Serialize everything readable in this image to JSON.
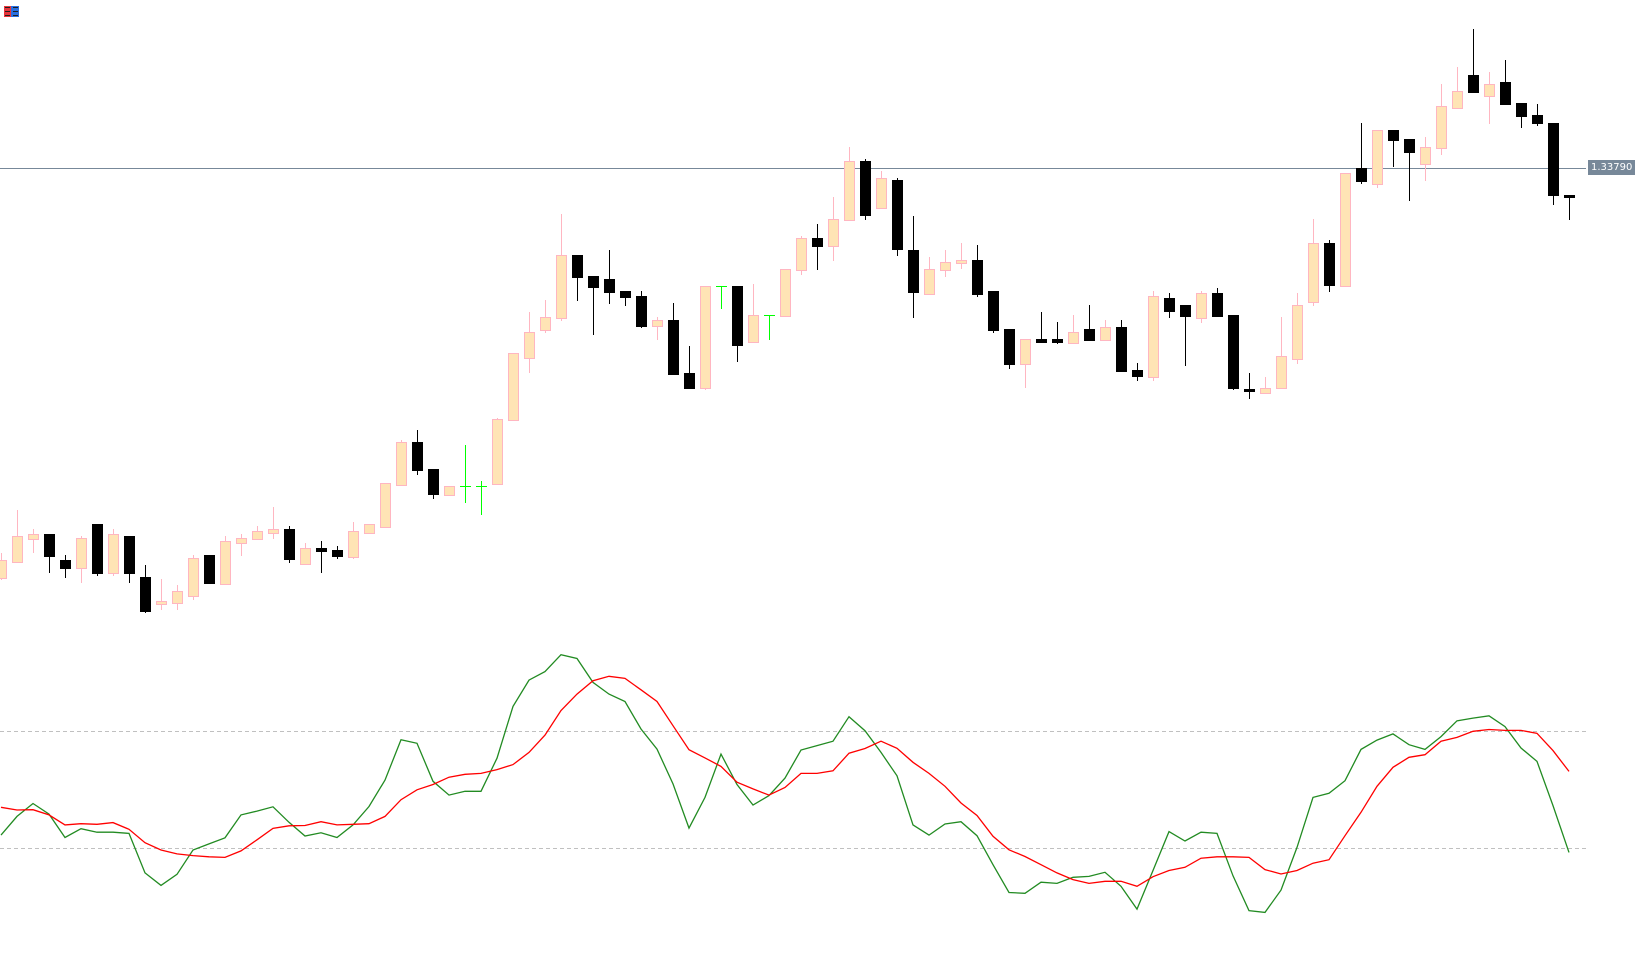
{
  "window": {
    "icon": "terminal-app-icon"
  },
  "colors": {
    "bull_body": "#ffe4b5",
    "bull_border": "#ffb6c1",
    "bear_body": "#000000",
    "doji": "#00ff00",
    "hline": "#778899",
    "level_line": "#c0c0c0",
    "osc_main": "#228b22",
    "osc_signal": "#ff0000"
  },
  "chart_data": [
    {
      "type": "candlestick",
      "horizontal_line": {
        "value": 1.3379,
        "label": "1.33790"
      },
      "ohlc_order": [
        "open",
        "high",
        "low",
        "close"
      ],
      "candles": [
        [
          1.3297,
          1.3302,
          1.32966,
          1.33006
        ],
        [
          1.33002,
          1.33106,
          1.33,
          1.33054
        ],
        [
          1.33048,
          1.33068,
          1.3302,
          1.33058
        ],
        [
          1.33058,
          1.33058,
          1.3298,
          1.33012
        ],
        [
          1.33006,
          1.33016,
          1.3297,
          1.32988
        ],
        [
          1.3299,
          1.33054,
          1.3296,
          1.3305
        ],
        [
          1.33078,
          1.33078,
          1.32974,
          1.32978
        ],
        [
          1.3298,
          1.33068,
          1.32974,
          1.33058
        ],
        [
          1.33054,
          1.33054,
          1.3296,
          1.32978
        ],
        [
          1.32972,
          1.32996,
          1.329,
          1.32902
        ],
        [
          1.32918,
          1.32968,
          1.32906,
          1.32924
        ],
        [
          1.3292,
          1.32956,
          1.32906,
          1.32944
        ],
        [
          1.32934,
          1.33016,
          1.32926,
          1.3301
        ],
        [
          1.33016,
          1.33016,
          1.32958,
          1.32958
        ],
        [
          1.32958,
          1.33054,
          1.32956,
          1.33044
        ],
        [
          1.3304,
          1.33058,
          1.33014,
          1.3305
        ],
        [
          1.33048,
          1.33074,
          1.33048,
          1.33064
        ],
        [
          1.3306,
          1.33112,
          1.33048,
          1.33068
        ],
        [
          1.33068,
          1.33074,
          1.33,
          1.33006
        ],
        [
          1.32998,
          1.3304,
          1.32998,
          1.3303
        ],
        [
          1.3303,
          1.33044,
          1.3298,
          1.33022
        ],
        [
          1.33026,
          1.33034,
          1.33008,
          1.33012
        ],
        [
          1.33012,
          1.33082,
          1.33008,
          1.33064
        ],
        [
          1.3306,
          1.33078,
          1.3306,
          1.33078
        ],
        [
          1.33072,
          1.3316,
          1.33072,
          1.3316
        ],
        [
          1.33156,
          1.33246,
          1.33156,
          1.33242
        ],
        [
          1.33242,
          1.33266,
          1.33176,
          1.33184
        ],
        [
          1.33188,
          1.33188,
          1.33128,
          1.33136
        ],
        [
          1.33136,
          1.33154,
          1.33134,
          1.33154
        ],
        [
          1.33154,
          1.33236,
          1.3312,
          1.33154
        ],
        [
          1.33154,
          1.33164,
          1.33096,
          1.33154
        ],
        [
          1.33158,
          1.3329,
          1.33156,
          1.33288
        ],
        [
          1.33286,
          1.3342,
          1.33284,
          1.3342
        ],
        [
          1.3341,
          1.33502,
          1.3338,
          1.33462
        ],
        [
          1.33466,
          1.33526,
          1.3346,
          1.33492
        ],
        [
          1.3349,
          1.33698,
          1.33484,
          1.33616
        ],
        [
          1.33616,
          1.33616,
          1.33524,
          1.3357
        ],
        [
          1.33574,
          1.33574,
          1.33456,
          1.3355
        ],
        [
          1.33568,
          1.33626,
          1.33518,
          1.3354
        ],
        [
          1.33544,
          1.33544,
          1.33514,
          1.3353
        ],
        [
          1.33534,
          1.33544,
          1.3347,
          1.33472
        ],
        [
          1.33474,
          1.33492,
          1.33446,
          1.33486
        ],
        [
          1.33486,
          1.3352,
          1.33376,
          1.33376
        ],
        [
          1.3338,
          1.33434,
          1.33348,
          1.33348
        ],
        [
          1.3335,
          1.33554,
          1.33346,
          1.33554
        ],
        [
          1.33554,
          1.33554,
          1.33508,
          1.33554
        ],
        [
          1.33554,
          1.33554,
          1.33402,
          1.33434
        ],
        [
          1.33442,
          1.33558,
          1.33442,
          1.33496
        ],
        [
          1.33496,
          1.33496,
          1.33446,
          1.33496
        ],
        [
          1.33494,
          1.33588,
          1.33494,
          1.33588
        ],
        [
          1.33586,
          1.33654,
          1.33576,
          1.3365
        ],
        [
          1.3365,
          1.33678,
          1.33586,
          1.33632
        ],
        [
          1.33634,
          1.33732,
          1.33604,
          1.33688
        ],
        [
          1.33686,
          1.33832,
          1.33686,
          1.33804
        ],
        [
          1.33804,
          1.33808,
          1.33686,
          1.33694
        ],
        [
          1.3371,
          1.33784,
          1.3371,
          1.3377
        ],
        [
          1.33766,
          1.3377,
          1.33614,
          1.33626
        ],
        [
          1.33626,
          1.33694,
          1.3349,
          1.3354
        ],
        [
          1.33538,
          1.33612,
          1.33538,
          1.33588
        ],
        [
          1.33586,
          1.33626,
          1.33572,
          1.33602
        ],
        [
          1.336,
          1.3364,
          1.33588,
          1.33606
        ],
        [
          1.33606,
          1.33636,
          1.33532,
          1.33536
        ],
        [
          1.33544,
          1.33544,
          1.3346,
          1.33464
        ],
        [
          1.33468,
          1.33468,
          1.33388,
          1.33396
        ],
        [
          1.33398,
          1.33448,
          1.3335,
          1.33448
        ],
        [
          1.33448,
          1.33502,
          1.3344,
          1.3344
        ],
        [
          1.33448,
          1.33482,
          1.33438,
          1.3344
        ],
        [
          1.3344,
          1.33496,
          1.3344,
          1.33462
        ],
        [
          1.33468,
          1.33516,
          1.33444,
          1.33444
        ],
        [
          1.33446,
          1.33486,
          1.33446,
          1.33472
        ],
        [
          1.33472,
          1.33486,
          1.33382,
          1.33382
        ],
        [
          1.33386,
          1.334,
          1.33364,
          1.33372
        ],
        [
          1.33372,
          1.33544,
          1.33364,
          1.33534
        ],
        [
          1.3353,
          1.3354,
          1.3349,
          1.33502
        ],
        [
          1.33516,
          1.33516,
          1.33394,
          1.33492
        ],
        [
          1.3349,
          1.33544,
          1.3348,
          1.3354
        ],
        [
          1.3354,
          1.3355,
          1.33492,
          1.33492
        ],
        [
          1.33496,
          1.33496,
          1.33346,
          1.33348
        ],
        [
          1.33348,
          1.3338,
          1.33328,
          1.33342
        ],
        [
          1.3334,
          1.33372,
          1.3334,
          1.3335
        ],
        [
          1.3335,
          1.33492,
          1.3335,
          1.33414
        ],
        [
          1.33408,
          1.3354,
          1.33398,
          1.33516
        ],
        [
          1.33522,
          1.33688,
          1.33514,
          1.3364
        ],
        [
          1.3364,
          1.33646,
          1.33542,
          1.33554
        ],
        [
          1.33554,
          1.3378,
          1.33554,
          1.3378
        ],
        [
          1.3379,
          1.3388,
          1.33758,
          1.33762
        ],
        [
          1.33758,
          1.33866,
          1.3375,
          1.33866
        ],
        [
          1.33866,
          1.33866,
          1.33792,
          1.33844
        ],
        [
          1.33848,
          1.33848,
          1.33724,
          1.3382
        ],
        [
          1.33798,
          1.33852,
          1.33764,
          1.33832
        ],
        [
          1.3383,
          1.33958,
          1.33816,
          1.33914
        ],
        [
          1.3391,
          1.33992,
          1.33908,
          1.33944
        ],
        [
          1.33976,
          1.34068,
          1.3394,
          1.3394
        ],
        [
          1.33934,
          1.33982,
          1.33878,
          1.33958
        ],
        [
          1.33962,
          1.34006,
          1.33916,
          1.33916
        ],
        [
          1.3392,
          1.3392,
          1.3387,
          1.33892
        ],
        [
          1.33896,
          1.33918,
          1.33874,
          1.33878
        ],
        [
          1.3388,
          1.3388,
          1.33716,
          1.33734
        ],
        [
          1.33736,
          1.33736,
          1.33686,
          1.3373
        ]
      ]
    },
    {
      "type": "line",
      "levels": [
        70,
        30
      ],
      "ylim": [
        0,
        100
      ],
      "series": [
        {
          "color": "#228b22",
          "values": [
            34.4,
            40.8,
            45.2,
            41.6,
            33.6,
            36.6,
            35.4,
            35.4,
            35.0,
            21.5,
            17.2,
            21.0,
            29.3,
            31.4,
            33.5,
            41.3,
            42.6,
            44.1,
            38.8,
            34.1,
            35.2,
            33.6,
            37.9,
            44.2,
            53.2,
            67.0,
            65.8,
            52.8,
            48.1,
            49.4,
            49.4,
            60.7,
            78.4,
            87.4,
            90.3,
            96.1,
            94.8,
            86.6,
            82.6,
            80.1,
            70.7,
            63.8,
            51.9,
            36.8,
            47.3,
            62.1,
            51.7,
            44.7,
            47.9,
            53.9,
            63.5,
            65.0,
            66.5,
            74.9,
            70.1,
            62.7,
            54.7,
            37.9,
            34.4,
            38.2,
            39.0,
            34.2,
            24.3,
            14.8,
            14.5,
            18.3,
            17.9,
            20.0,
            20.3,
            21.7,
            16.9,
            9.1,
            22.3,
            35.6,
            32.4,
            35.4,
            35.0,
            20.5,
            8.6,
            8.0,
            15.6,
            30.2,
            47.3,
            48.7,
            53.0,
            63.7,
            66.9,
            69.0,
            65.3,
            63.7,
            68.1,
            73.5,
            74.4,
            75.2,
            71.5,
            64.2,
            59.6,
            44.5,
            28.5
          ]
        },
        {
          "color": "#ff0000",
          "values": [
            43.9,
            43.0,
            43.1,
            41.3,
            37.9,
            38.3,
            38.1,
            38.7,
            36.4,
            31.8,
            29.3,
            28.0,
            27.4,
            27.0,
            26.8,
            29.0,
            32.8,
            36.7,
            37.6,
            37.7,
            39.0,
            37.9,
            38.1,
            38.3,
            40.8,
            46.5,
            49.9,
            51.7,
            54.2,
            55.2,
            55.5,
            56.8,
            58.5,
            62.7,
            68.6,
            77.0,
            82.6,
            87.2,
            88.7,
            88.0,
            84.1,
            80.1,
            71.8,
            63.6,
            60.8,
            57.9,
            52.5,
            50.2,
            48.1,
            50.7,
            55.5,
            55.5,
            56.4,
            62.4,
            64.0,
            66.5,
            64.1,
            59.3,
            55.5,
            51.1,
            45.4,
            41.1,
            34.0,
            29.4,
            27.1,
            24.3,
            21.5,
            19.2,
            17.9,
            18.6,
            18.6,
            16.9,
            20.2,
            22.3,
            23.4,
            26.5,
            27.0,
            27.0,
            26.8,
            22.6,
            21.1,
            22.3,
            24.8,
            26.0,
            34.2,
            42.2,
            51.1,
            57.6,
            61.0,
            61.9,
            66.5,
            67.8,
            69.9,
            70.5,
            70.2,
            70.2,
            69.2,
            63.3,
            56.2
          ]
        }
      ]
    }
  ]
}
